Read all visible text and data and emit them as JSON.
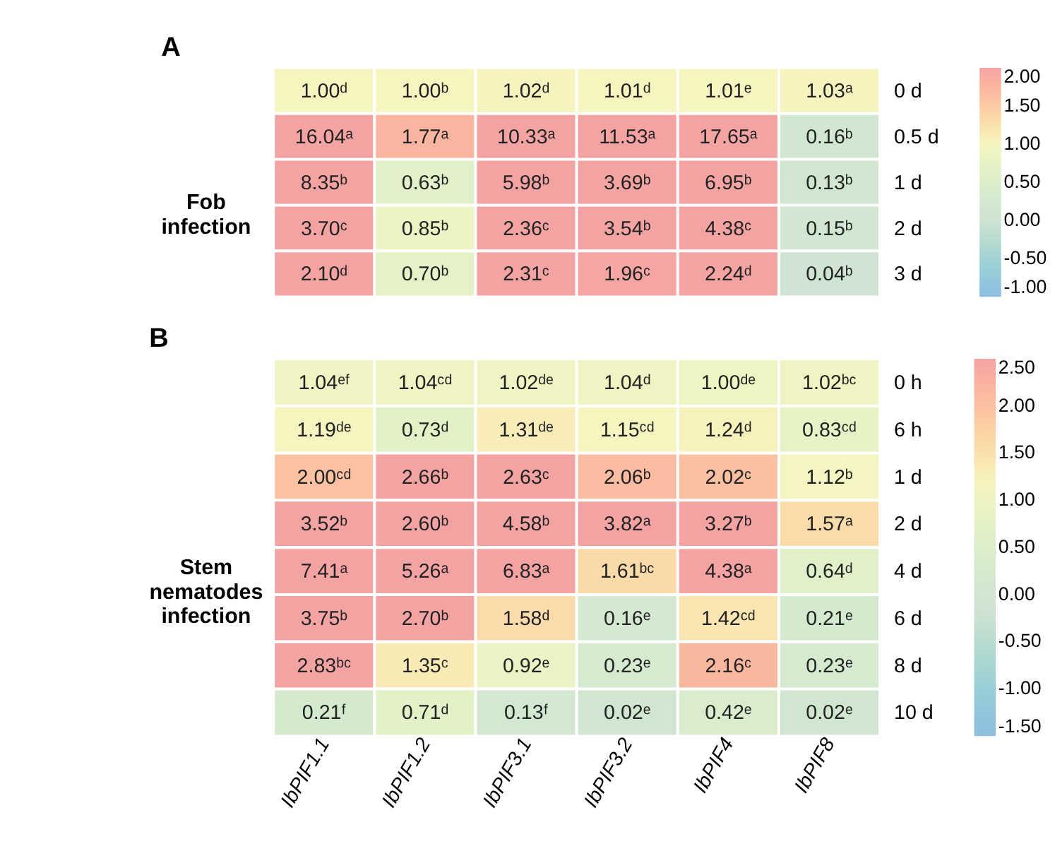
{
  "chart_data": [
    {
      "type": "heatmap",
      "title": "A",
      "ylabel": "Fob infection",
      "tick_labels": "y",
      "categories": [
        null,
        null,
        null,
        null,
        null,
        null
      ],
      "y_categories": [
        "0 d",
        "0.5 d",
        "1 d",
        "2 d",
        "3 d"
      ],
      "cells": [
        [
          1.0,
          1.0,
          1.02,
          1.01,
          1.01,
          1.03
        ],
        [
          16.04,
          1.77,
          10.33,
          11.53,
          17.65,
          0.16
        ],
        [
          8.35,
          0.63,
          5.98,
          3.69,
          6.95,
          0.13
        ],
        [
          3.7,
          0.85,
          2.36,
          3.54,
          4.38,
          0.15
        ],
        [
          2.1,
          0.7,
          2.31,
          1.96,
          2.24,
          0.04
        ]
      ],
      "cell_labels": [
        [
          "1.00ᵈ",
          "1.00ᵇ",
          "1.02ᵈ",
          "1.01ᵈ",
          "1.01ᵉ",
          "1.03ᵃ"
        ],
        [
          "16.04ᵃ",
          "1.77ᵃ",
          "10.33ᵃ",
          "11.53ᵃ",
          "17.65ᵃ",
          "0.16ᵇ"
        ],
        [
          "8.35ᵇ",
          "0.63ᵇ",
          "5.98ᵇ",
          "3.69ᵇ",
          "6.95ᵇ",
          "0.13ᵇ"
        ],
        [
          "3.70ᶜ",
          "0.85ᵇ",
          "2.36ᶜ",
          "3.54ᵇ",
          "4.38ᶜ",
          "0.15ᵇ"
        ],
        [
          "2.10ᵈ",
          "0.70ᵇ",
          "2.31ᶜ",
          "1.96ᶜ",
          "2.24ᵈ",
          "0.04ᵇ"
        ]
      ],
      "clim": [
        -1,
        2
      ],
      "cticks": [
        {
          "value": 2,
          "label": "2.00"
        },
        {
          "value": 1.5,
          "label": "1.50"
        },
        {
          "value": 1,
          "label": "1.00"
        },
        {
          "value": 0.5,
          "label": "0.50"
        },
        {
          "value": 0,
          "label": "0.00"
        },
        {
          "value": -0.5,
          "label": "-0.50"
        },
        {
          "value": -1,
          "label": "-1.00"
        }
      ]
    },
    {
      "type": "heatmap",
      "title": "B",
      "ylabel": "Stem nematodes infection",
      "categories": [
        "IbPIF1.1",
        "IbPIF1.2",
        "IbPIF3.1",
        "IbPIF3.2",
        "IbPIF4",
        "IbPIF8"
      ],
      "y_categories": [
        "0 h",
        "6 h",
        "1 d",
        "2 d",
        "4 d",
        "6 d",
        "8 d",
        "10 d"
      ],
      "cells": [
        [
          1.04,
          1.04,
          1.02,
          1.04,
          1.0,
          1.02
        ],
        [
          1.19,
          0.73,
          1.31,
          1.15,
          1.24,
          0.83
        ],
        [
          2.0,
          2.66,
          2.63,
          2.06,
          2.02,
          1.12
        ],
        [
          3.52,
          2.6,
          4.58,
          3.82,
          3.27,
          1.57
        ],
        [
          7.41,
          5.26,
          6.83,
          1.61,
          4.38,
          0.64
        ],
        [
          3.75,
          2.7,
          1.58,
          0.16,
          1.42,
          0.21
        ],
        [
          2.83,
          1.35,
          0.92,
          0.23,
          2.16,
          0.23
        ],
        [
          0.21,
          0.71,
          0.13,
          0.02,
          0.42,
          0.02
        ]
      ],
      "cell_labels": [
        [
          "1.04ᵉᶠ",
          "1.04ᶜᵈ",
          "1.02ᵈᵉ",
          "1.04ᵈ",
          "1.00ᵈᵉ",
          "1.02ᵇᶜ"
        ],
        [
          "1.19ᵈᵉ",
          "0.73ᵈ",
          "1.31ᵈᵉ",
          "1.15ᶜᵈ",
          "1.24ᵈ",
          "0.83ᶜᵈ"
        ],
        [
          "2.00ᶜᵈ",
          "2.66ᵇ",
          "2.63ᶜ",
          "2.06ᵇ",
          "2.02ᶜ",
          "1.12ᵇ"
        ],
        [
          "3.52ᵇ",
          "2.60ᵇ",
          "4.58ᵇ",
          "3.82ᵃ",
          "3.27ᵇ",
          "1.57ᵃ"
        ],
        [
          "7.41ᵃ",
          "5.26ᵃ",
          "6.83ᵃ",
          "1.61ᵇᶜ",
          "4.38ᵃ",
          "0.64ᵈ"
        ],
        [
          "3.75ᵇ",
          "2.70ᵇ",
          "1.58ᵈ",
          "0.16ᵉ",
          "1.42ᶜᵈ",
          "0.21ᵉ"
        ],
        [
          "2.83ᵇᶜ",
          "1.35ᶜ",
          "0.92ᵉ",
          "0.23ᵉ",
          "2.16ᶜ",
          "0.23ᵉ"
        ],
        [
          "0.21ᶠ",
          "0.71ᵈ",
          "0.13ᶠ",
          "0.02ᵉ",
          "0.42ᵉ",
          "0.02ᵉ"
        ]
      ],
      "clim": [
        -1.5,
        2.5
      ],
      "cticks": [
        {
          "value": 2.5,
          "label": "2.50"
        },
        {
          "value": 2,
          "label": "2.00"
        },
        {
          "value": 1.5,
          "label": "1.50"
        },
        {
          "value": 1,
          "label": "1.00"
        },
        {
          "value": 0.5,
          "label": "0.50"
        },
        {
          "value": 0,
          "label": "0.00"
        },
        {
          "value": -0.5,
          "label": "-0.50"
        },
        {
          "value": -1,
          "label": "-1.00"
        },
        {
          "value": -1.5,
          "label": "-1.50"
        }
      ]
    }
  ]
}
